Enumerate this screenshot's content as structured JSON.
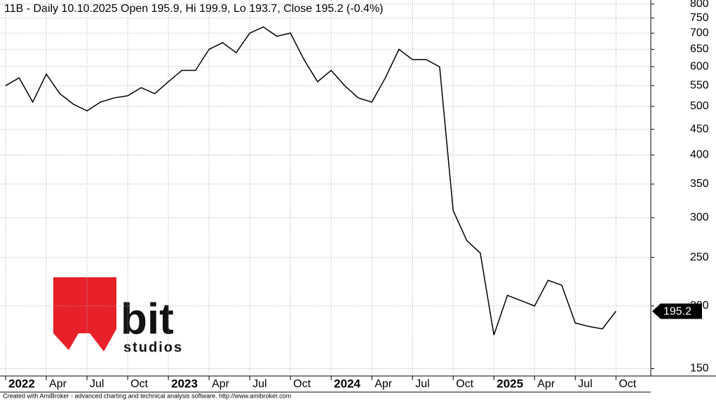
{
  "chart_data": {
    "type": "line",
    "title": "11B - Daily 10.10.2025 Open 195.9, Hi 199.9, Lo 193.7, Close 195.2 (-0.4%)",
    "x": [
      "2022-01",
      "2022-02",
      "2022-03",
      "2022-04",
      "2022-05",
      "2022-06",
      "2022-07",
      "2022-08",
      "2022-09",
      "2022-10",
      "2022-11",
      "2022-12",
      "2023-01",
      "2023-02",
      "2023-03",
      "2023-04",
      "2023-05",
      "2023-06",
      "2023-07",
      "2023-08",
      "2023-09",
      "2023-10",
      "2023-11",
      "2023-12",
      "2024-01",
      "2024-02",
      "2024-03",
      "2024-04",
      "2024-05",
      "2024-06",
      "2024-07",
      "2024-08",
      "2024-09",
      "2024-10",
      "2024-11",
      "2024-12",
      "2025-01",
      "2025-02",
      "2025-03",
      "2025-04",
      "2025-05",
      "2025-06",
      "2025-07",
      "2025-08",
      "2025-09",
      "2025-10"
    ],
    "series": [
      {
        "color": "#000000",
        "values": [
          550,
          570,
          510,
          580,
          530,
          505,
          490,
          510,
          520,
          525,
          545,
          530,
          560,
          590,
          590,
          650,
          670,
          640,
          700,
          720,
          690,
          700,
          620,
          560,
          590,
          550,
          520,
          510,
          570,
          650,
          620,
          620,
          600,
          310,
          270,
          255,
          175,
          210,
          205,
          200,
          225,
          220,
          185,
          182,
          180,
          195.2
        ]
      }
    ],
    "xlim": [
      "2022-01",
      "2025-12"
    ],
    "xticks": [
      {
        "value": "2022-01",
        "label": "2022"
      },
      {
        "value": "2022-04",
        "label": "Apr"
      },
      {
        "value": "2022-07",
        "label": "Jul"
      },
      {
        "value": "2022-10",
        "label": "Oct"
      },
      {
        "value": "2023-01",
        "label": "2023"
      },
      {
        "value": "2023-04",
        "label": "Apr"
      },
      {
        "value": "2023-07",
        "label": "Jul"
      },
      {
        "value": "2023-10",
        "label": "Oct"
      },
      {
        "value": "2024-01",
        "label": "2024"
      },
      {
        "value": "2024-04",
        "label": "Apr"
      },
      {
        "value": "2024-07",
        "label": "Jul"
      },
      {
        "value": "2024-10",
        "label": "Oct"
      },
      {
        "value": "2025-01",
        "label": "2025"
      },
      {
        "value": "2025-04",
        "label": "Apr"
      },
      {
        "value": "2025-07",
        "label": "Jul"
      },
      {
        "value": "2025-10",
        "label": "Oct"
      }
    ],
    "ylim": [
      145,
      815
    ],
    "yticks": [
      150,
      200,
      250,
      300,
      350,
      400,
      450,
      500,
      550,
      600,
      650,
      700,
      750,
      800
    ],
    "log_scale": true,
    "grid": true,
    "footer": "Created with AmiBroker - advanced charting and technical analysis software. http://www.amibroker.com",
    "logo": {
      "word": "bit",
      "sub": "studios"
    }
  }
}
